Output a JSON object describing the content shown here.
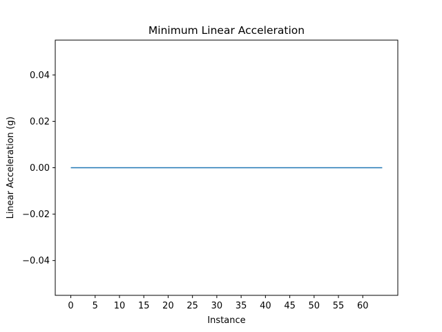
{
  "chart_data": {
    "type": "line",
    "title": "Minimum Linear Acceleration",
    "xlabel": "Instance",
    "ylabel": "Linear Acceleration (g)",
    "xlim": [
      -3.2,
      67.2
    ],
    "ylim": [
      -0.055,
      0.055
    ],
    "x_ticks": [
      0,
      5,
      10,
      15,
      20,
      25,
      30,
      35,
      40,
      45,
      50,
      55,
      60
    ],
    "y_ticks": [
      -0.04,
      -0.02,
      0.0,
      0.02,
      0.04
    ],
    "y_tick_labels": [
      "−0.04",
      "−0.02",
      "0.00",
      "0.02",
      "0.04"
    ],
    "grid": false,
    "series": [
      {
        "color": "#1f77b4",
        "x": [
          0,
          64
        ],
        "y": [
          0.0,
          0.0
        ]
      }
    ]
  }
}
